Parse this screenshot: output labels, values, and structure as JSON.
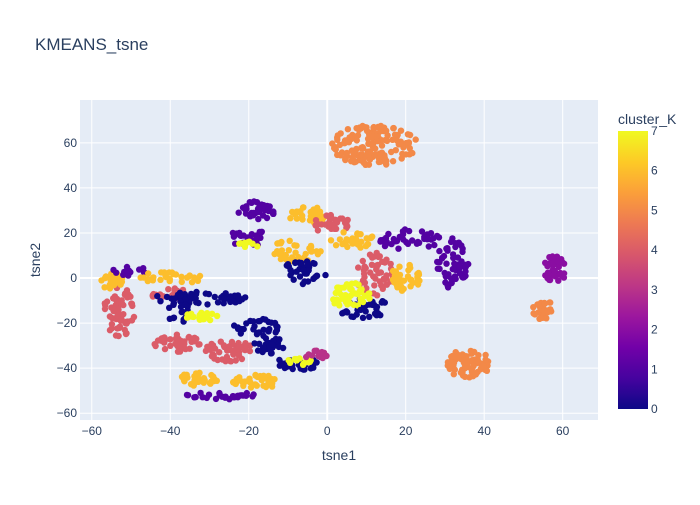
{
  "chart_data": {
    "type": "scatter",
    "title": "KMEANS_tsne",
    "xlabel": "tsne1",
    "ylabel": "tsne2",
    "xlim": [
      -63,
      69
    ],
    "ylim": [
      -63,
      79
    ],
    "x_ticks": [
      -60,
      -40,
      -20,
      0,
      20,
      40,
      60
    ],
    "y_ticks": [
      -60,
      -40,
      -20,
      0,
      20,
      40,
      60
    ],
    "grid": true,
    "legend_position": "right",
    "colorbar": {
      "title": "cluster_K",
      "min": 0,
      "max": 7,
      "ticks": [
        0,
        1,
        2,
        3,
        4,
        5,
        6,
        7
      ],
      "colorscale": [
        "#0d0887",
        "#46039f",
        "#7201a8",
        "#9c179e",
        "#bd3786",
        "#d8576b",
        "#ed7953",
        "#fb9f3a",
        "#fdca26",
        "#f0f921"
      ]
    },
    "plot_bgcolor": "#e5ecf6",
    "cluster_regions": [
      {
        "cluster": 5,
        "cx": 12,
        "cy": 59,
        "rx": 11,
        "ry": 9,
        "n": 150
      },
      {
        "cluster": 5,
        "cx": 36,
        "cy": -38,
        "rx": 5.5,
        "ry": 6.5,
        "n": 70
      },
      {
        "cluster": 5,
        "cx": 55,
        "cy": -14,
        "rx": 3,
        "ry": 4.5,
        "n": 30
      },
      {
        "cluster": 2,
        "cx": 58,
        "cy": 4,
        "rx": 3,
        "ry": 6,
        "n": 40
      },
      {
        "cluster": 1,
        "cx": 32,
        "cy": 7,
        "rx": 4,
        "ry": 12,
        "n": 55
      },
      {
        "cluster": 1,
        "cx": 21,
        "cy": 17,
        "rx": 8,
        "ry": 5,
        "n": 40
      },
      {
        "cluster": 0,
        "cx": 10,
        "cy": -12,
        "rx": 6,
        "ry": 3,
        "n": 20
      },
      {
        "cluster": 4,
        "cx": 12,
        "cy": 2,
        "rx": 5,
        "ry": 10,
        "n": 50
      },
      {
        "cluster": 6,
        "cx": 20,
        "cy": 0,
        "rx": 4,
        "ry": 6,
        "n": 40
      },
      {
        "cluster": 7,
        "cx": 6,
        "cy": -8,
        "rx": 5,
        "ry": 6,
        "n": 45
      },
      {
        "cluster": 6,
        "cx": -5,
        "cy": 28,
        "rx": 5,
        "ry": 4,
        "n": 30
      },
      {
        "cluster": 4,
        "cx": 1,
        "cy": 24,
        "rx": 5,
        "ry": 4,
        "n": 30
      },
      {
        "cluster": 6,
        "cx": 6,
        "cy": 17,
        "rx": 6,
        "ry": 4,
        "n": 30
      },
      {
        "cluster": 1,
        "cx": -18,
        "cy": 30,
        "rx": 5,
        "ry": 4,
        "n": 35
      },
      {
        "cluster": 1,
        "cx": -20,
        "cy": 18,
        "rx": 5,
        "ry": 4,
        "n": 30
      },
      {
        "cluster": 6,
        "cx": -8,
        "cy": 12,
        "rx": 7,
        "ry": 5,
        "n": 40
      },
      {
        "cluster": 0,
        "cx": -6,
        "cy": 2,
        "rx": 6,
        "ry": 6,
        "n": 35
      },
      {
        "cluster": 4,
        "cx": -53,
        "cy": -15,
        "rx": 4,
        "ry": 11,
        "n": 60
      },
      {
        "cluster": 6,
        "cx": -55,
        "cy": -1,
        "rx": 3,
        "ry": 4,
        "n": 25
      },
      {
        "cluster": 1,
        "cx": -50,
        "cy": 3,
        "rx": 5,
        "ry": 2,
        "n": 15
      },
      {
        "cluster": 6,
        "cx": -40,
        "cy": 0,
        "rx": 8,
        "ry": 3,
        "n": 30
      },
      {
        "cluster": 4,
        "cx": -40,
        "cy": -7,
        "rx": 5,
        "ry": 3,
        "n": 20
      },
      {
        "cluster": 0,
        "cx": -32,
        "cy": -9,
        "rx": 12,
        "ry": 3,
        "n": 45
      },
      {
        "cluster": 0,
        "cx": -38,
        "cy": -15,
        "rx": 3,
        "ry": 5,
        "n": 20
      },
      {
        "cluster": 7,
        "cx": -32,
        "cy": -17,
        "rx": 5,
        "ry": 2,
        "n": 20
      },
      {
        "cluster": 4,
        "cx": -38,
        "cy": -29,
        "rx": 6,
        "ry": 4,
        "n": 40
      },
      {
        "cluster": 4,
        "cx": -25,
        "cy": -32,
        "rx": 6,
        "ry": 5,
        "n": 45
      },
      {
        "cluster": 0,
        "cx": -18,
        "cy": -22,
        "rx": 6,
        "ry": 4,
        "n": 30
      },
      {
        "cluster": 0,
        "cx": -15,
        "cy": -30,
        "rx": 4,
        "ry": 4,
        "n": 25
      },
      {
        "cluster": 6,
        "cx": -33,
        "cy": -45,
        "rx": 5,
        "ry": 3,
        "n": 30
      },
      {
        "cluster": 6,
        "cx": -18,
        "cy": -46,
        "rx": 6,
        "ry": 3,
        "n": 35
      },
      {
        "cluster": 1,
        "cx": -27,
        "cy": -52,
        "rx": 9,
        "ry": 2,
        "n": 30
      },
      {
        "cluster": 0,
        "cx": -8,
        "cy": -38,
        "rx": 6,
        "ry": 3,
        "n": 30
      },
      {
        "cluster": 7,
        "cx": -7,
        "cy": -37,
        "rx": 3,
        "ry": 2,
        "n": 15
      },
      {
        "cluster": 3,
        "cx": -3,
        "cy": -34,
        "rx": 3,
        "ry": 2,
        "n": 12
      },
      {
        "cluster": 7,
        "cx": -20,
        "cy": 15,
        "rx": 3,
        "ry": 1.5,
        "n": 8
      },
      {
        "cluster": 0,
        "cx": 8,
        "cy": -16,
        "rx": 6,
        "ry": 2,
        "n": 15
      }
    ]
  }
}
